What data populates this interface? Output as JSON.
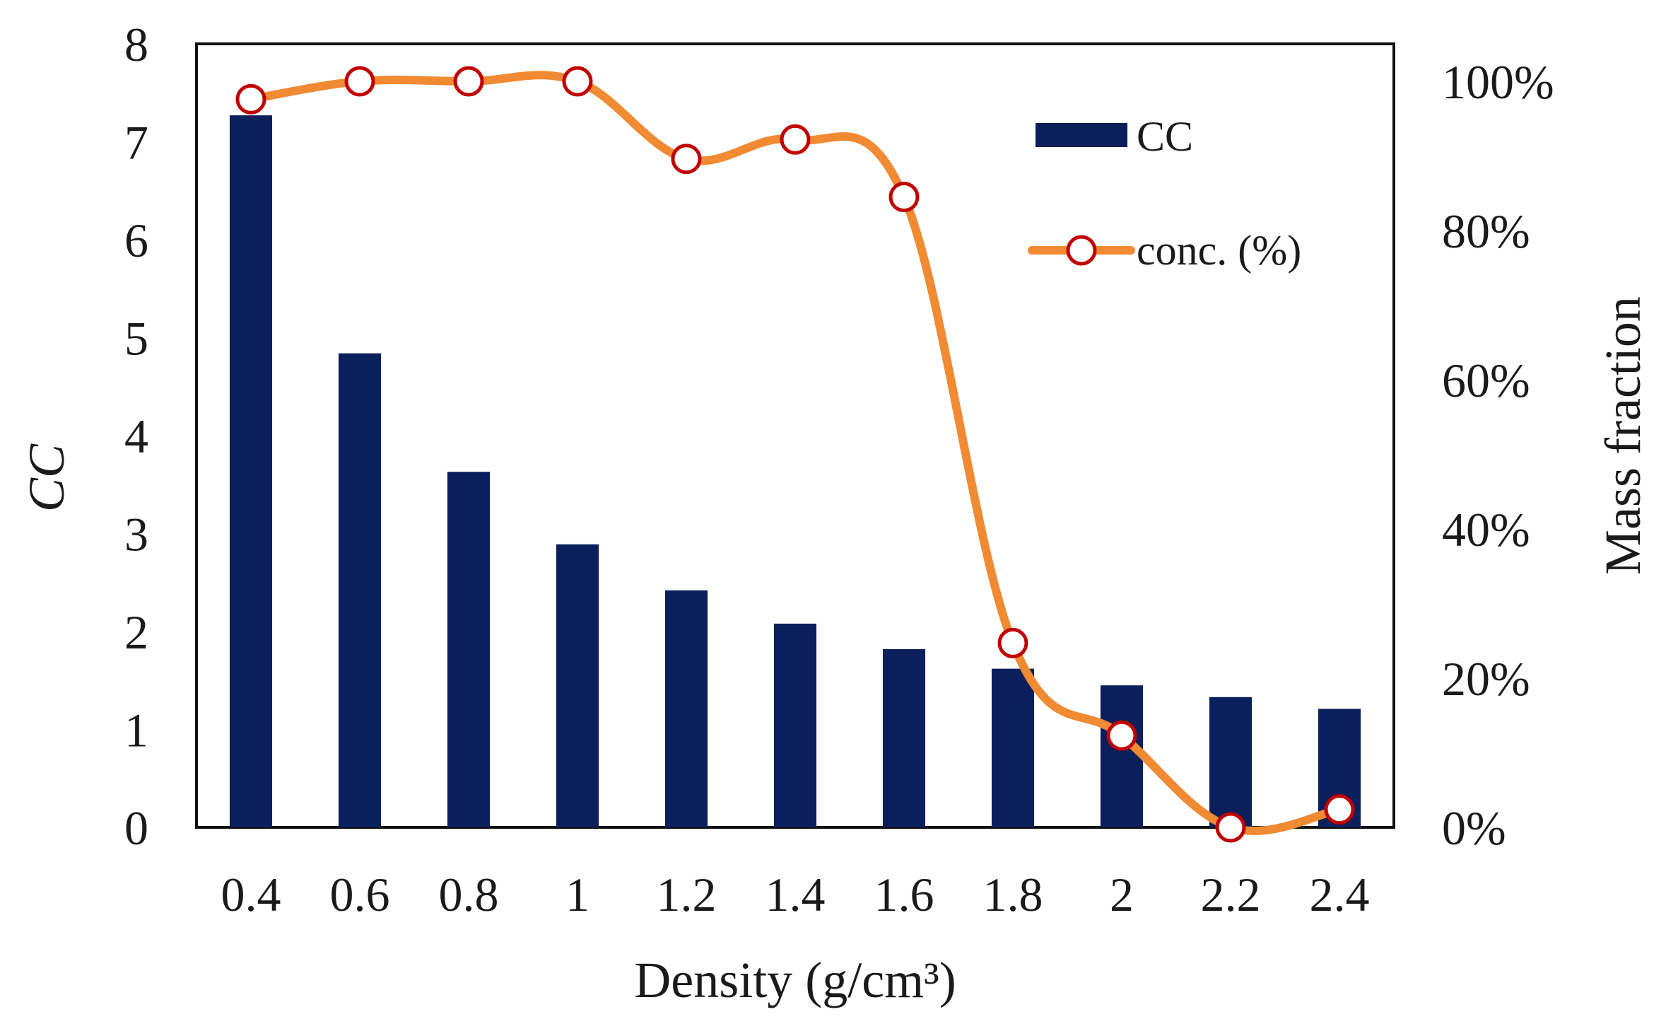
{
  "chart_data": {
    "type": "bar",
    "categories": [
      "0.4",
      "0.6",
      "0.8",
      "1",
      "1.2",
      "1.4",
      "1.6",
      "1.8",
      "2",
      "2.2",
      "2.4"
    ],
    "xlabel": "Density (g/cm³)",
    "ylabel": "CC",
    "y2label": "Mass fraction",
    "ylim": [
      0,
      8
    ],
    "yticks": [
      "0",
      "1",
      "2",
      "3",
      "4",
      "5",
      "6",
      "7",
      "8"
    ],
    "y2lim": [
      0,
      1.0
    ],
    "y2ticks": [
      "0%",
      "20%",
      "40%",
      "60%",
      "80%",
      "100%"
    ],
    "grid": false,
    "legend_position": "top-right",
    "series": [
      {
        "name": "CC",
        "type": "bar",
        "axis": "left",
        "color": "#0a1f5c",
        "values": [
          7.27,
          4.84,
          3.63,
          2.89,
          2.42,
          2.08,
          1.82,
          1.62,
          1.45,
          1.33,
          1.21
        ]
      },
      {
        "name": "conc. (%)",
        "type": "line",
        "axis": "right",
        "color": "#f08a33",
        "marker_edge": "#c00000",
        "values": [
          0.976,
          1.0,
          1.0,
          1.0,
          0.896,
          0.922,
          0.845,
          0.247,
          0.123,
          0.0,
          0.024
        ]
      }
    ]
  }
}
